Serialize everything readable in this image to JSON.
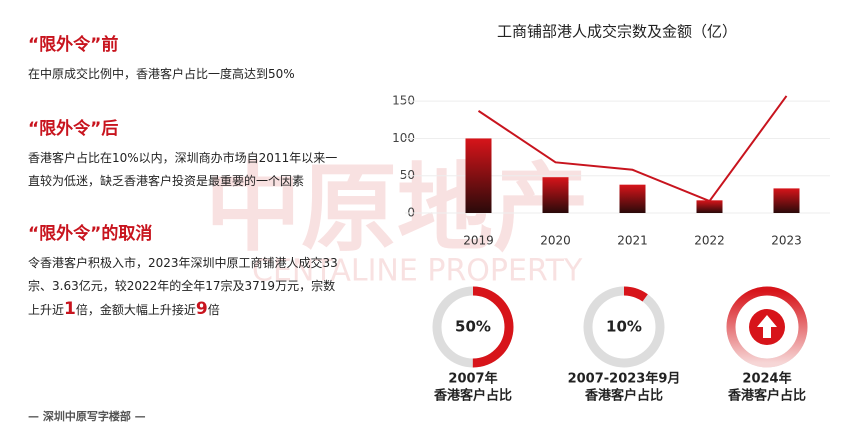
{
  "sections": [
    {
      "heading": "“限外令”前",
      "body": [
        "在中原成交比例中，香港客户占比一度高达到50%"
      ]
    },
    {
      "heading": "“限外令”后",
      "body": [
        "香港客户占比在10%以内，深圳商办市场自2011年以来一直较为低迷，缺乏香港客户投资是最重要的一个因素"
      ]
    },
    {
      "heading": "“限外令”的取消",
      "body": [
        "令香港客户积极入市，2023年深圳中原工商铺港人成交33宗、3.63亿元，较2022年的全年17宗及3719万元，宗数上升近",
        "1",
        "倍，金额大幅上升接近",
        "9",
        "倍"
      ]
    }
  ],
  "footer": "— 深圳中原写字楼部 —",
  "watermark": {
    "cn": "中原地产",
    "en": "CENTALINE PROPERTY"
  },
  "chart_data": {
    "type": "bar",
    "title": "工商铺部港人成交宗数及金额（亿）",
    "categories": [
      "2019",
      "2020",
      "2021",
      "2022",
      "2023"
    ],
    "series": [
      {
        "type": "bar",
        "color": "#d7141a",
        "values": [
          100,
          48,
          38,
          17,
          33
        ]
      },
      {
        "type": "line",
        "color": "#c8141e",
        "values": [
          137,
          68,
          58,
          16,
          157
        ]
      }
    ],
    "ylim": [
      0,
      165
    ],
    "yticks": [
      0,
      50,
      100,
      150
    ],
    "grid": true
  },
  "donuts": [
    {
      "value": 50,
      "label": "50%",
      "year": "2007年",
      "caption": "香港客户占比"
    },
    {
      "value": 10,
      "label": "10%",
      "year": "2007-2023年9月",
      "caption": "香港客户占比"
    },
    {
      "year": "2024年",
      "caption": "香港客户占比"
    }
  ]
}
